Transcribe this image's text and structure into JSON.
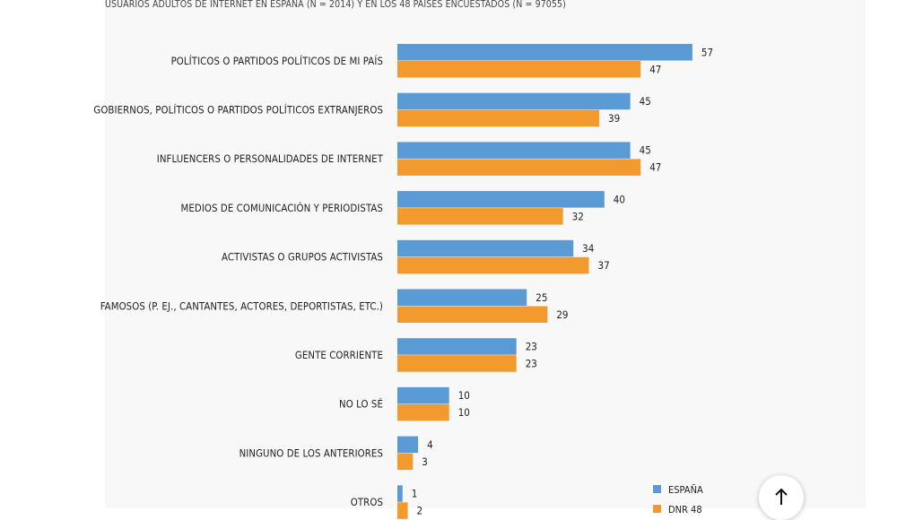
{
  "subtitle": "USUARIOS ADULTOS DE INTERNET EN ESPAÑA (N = 2014) Y EN LOS 48 PAÍSES ENCUESTADOS (N = 97055)",
  "colors": {
    "espana": "#5b9bd5",
    "dnr48": "#f39a2e",
    "panel": "#f8f8f8"
  },
  "chart_data": {
    "type": "bar",
    "orientation": "horizontal",
    "title": "USUARIOS ADULTOS DE INTERNET EN ESPAÑA (N = 2014) Y EN LOS 48 PAÍSES ENCUESTADOS (N = 97055)",
    "categories": [
      "POLÍTICOS O PARTIDOS POLÍTICOS DE MI PAÍS",
      "GOBIERNOS, POLÍTICOS O PARTIDOS POLÍTICOS EXTRANJEROS",
      "INFLUENCERS O PERSONALIDADES DE INTERNET",
      "MEDIOS DE COMUNICACIÓN Y PERIODISTAS",
      "ACTIVISTAS O GRUPOS ACTIVISTAS",
      "FAMOSOS (P. EJ., CANTANTES, ACTORES, DEPORTISTAS, ETC.)",
      "GENTE CORRIENTE",
      "NO LO SÉ",
      "NINGUNO DE LOS ANTERIORES",
      "OTROS"
    ],
    "series": [
      {
        "name": "ESPAÑA",
        "values": [
          57,
          45,
          45,
          40,
          34,
          25,
          23,
          10,
          4,
          1
        ]
      },
      {
        "name": "DNR 48",
        "values": [
          47,
          39,
          47,
          32,
          37,
          29,
          23,
          10,
          3,
          2
        ]
      }
    ],
    "value_labels": {
      "ESPAÑA": [
        "57",
        "45",
        "45",
        "40",
        "34",
        "25",
        "23",
        "10",
        "4",
        "1"
      ],
      "DNR 48": [
        "47",
        "39",
        "47",
        "32",
        "37",
        "29",
        "23",
        "10",
        "3",
        "2"
      ]
    },
    "xlim": [
      0,
      60
    ],
    "grid": false,
    "legend_position": "bottom-right"
  },
  "legend": {
    "espana": "ESPAÑA",
    "dnr48": "DNR 48"
  },
  "scroll_top": {
    "icon": "arrow-up-icon"
  }
}
